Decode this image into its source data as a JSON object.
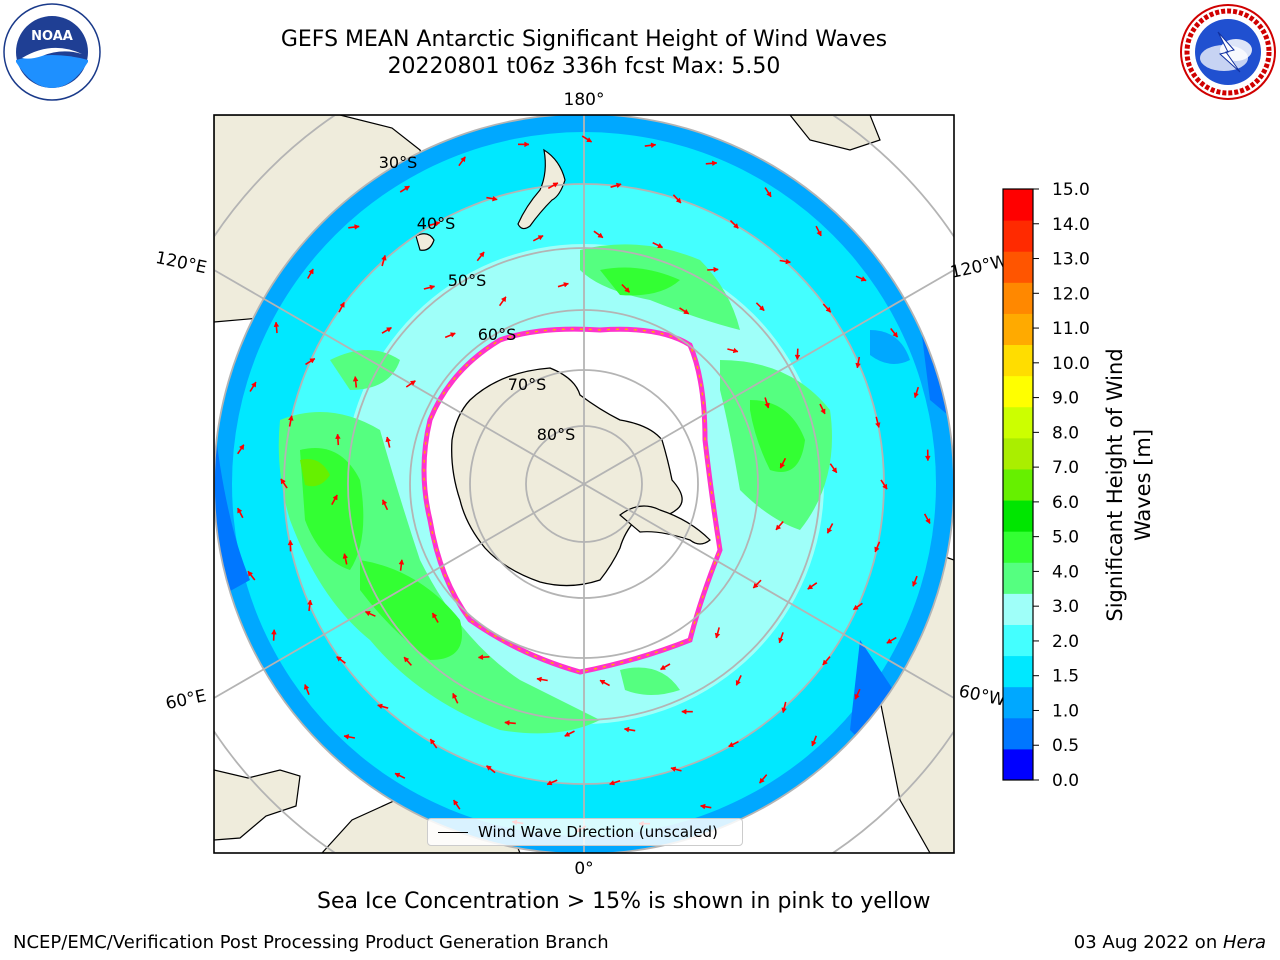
{
  "header": {
    "title_line1": "GEFS MEAN Antarctic Significant Height of Wind Waves",
    "title_line2": "20220801 t06z 336h fcst   Max: 5.50"
  },
  "logos": {
    "left": {
      "name": "noaa-logo",
      "text": "NOAA",
      "ring_text": "NATIONAL OCEANIC AND ATMOSPHERIC ADMINISTRATION · U.S. DEPARTMENT OF COMMERCE"
    },
    "right": {
      "name": "nws-logo",
      "ring_text": "NATIONAL WEATHER SERVICE"
    }
  },
  "map": {
    "longitude_labels": {
      "top": "180°",
      "bottom": "0°",
      "upper_left": "120°E",
      "upper_right": "120°W",
      "lower_left": "60°E",
      "lower_right": "60°W"
    },
    "latitude_labels": [
      "30°S",
      "40°S",
      "50°S",
      "60°S",
      "70°S",
      "80°S"
    ],
    "colors": {
      "land": "#efecdc",
      "ice": "#ffffff",
      "ice_edge_pink": "#ff33cc",
      "ice_edge_yellow": "#ffaa00",
      "arrow": "#ff0000",
      "grid": "#b4b4b4"
    }
  },
  "colorbar": {
    "label_line1": "Significant Height of Wind",
    "label_line2": "Waves [m]",
    "ticks": [
      "0.0",
      "0.5",
      "1.0",
      "1.5",
      "2.0",
      "3.0",
      "4.0",
      "5.0",
      "6.0",
      "7.0",
      "8.0",
      "9.0",
      "10.0",
      "11.0",
      "12.0",
      "13.0",
      "14.0",
      "15.0"
    ],
    "colors": [
      "#0000ff",
      "#0077ff",
      "#00a8ff",
      "#00e8ff",
      "#44ffff",
      "#9ffff9",
      "#55ff80",
      "#33ff33",
      "#00e600",
      "#66f000",
      "#aaee00",
      "#ccff00",
      "#ffff00",
      "#ffdd00",
      "#ffaa00",
      "#ff8800",
      "#ff5500",
      "#ff2a00",
      "#ff0000"
    ]
  },
  "legend": {
    "label": "Wind Wave Direction (unscaled)"
  },
  "notes": {
    "sea_ice": "Sea Ice Concentration > 15% is shown in pink to yellow"
  },
  "footer": {
    "left": "NCEP/EMC/Verification Post Processing Product Generation Branch",
    "right_date": "03 Aug 2022 on ",
    "right_host": "Hera"
  }
}
